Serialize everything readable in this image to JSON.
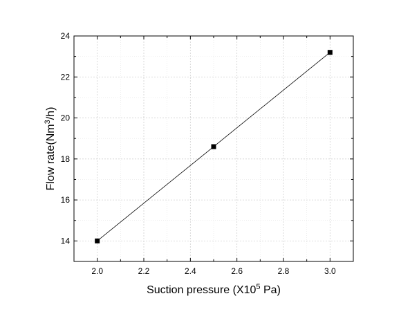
{
  "chart_data": {
    "type": "line",
    "title": "",
    "xlabel": {
      "prefix": "Suction pressure (X10",
      "sup": "5",
      "suffix": " Pa)"
    },
    "ylabel": {
      "prefix": "Flow rate(Nm",
      "sup": "3",
      "suffix": "/h)"
    },
    "xlim": [
      1.9,
      3.1
    ],
    "ylim": [
      13.0,
      24.0
    ],
    "xticks": [
      2.0,
      2.2,
      2.4,
      2.6,
      2.8,
      3.0
    ],
    "xtick_labels": [
      "2.0",
      "2.2",
      "2.4",
      "2.6",
      "2.8",
      "3.0"
    ],
    "yticks": [
      14,
      16,
      18,
      20,
      22,
      24
    ],
    "ytick_labels": [
      "14",
      "16",
      "18",
      "20",
      "22",
      "24"
    ],
    "grid": true,
    "series": [
      {
        "x": [
          2.0,
          2.5,
          3.0
        ],
        "y": [
          14.0,
          18.6,
          23.2
        ],
        "marker": "square",
        "color": "#000000"
      }
    ]
  }
}
